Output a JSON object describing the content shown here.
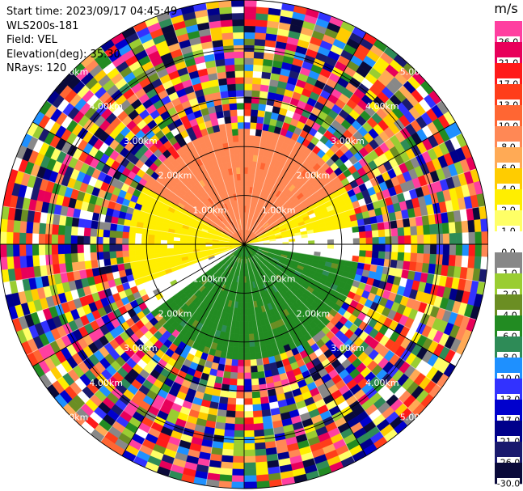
{
  "header": {
    "start_time": "Start time: 2023/09/17 04:45:49",
    "instrument": "WLS200s-181",
    "field": "Field: VEL",
    "elevation": "Elevation(deg): 35.30",
    "nrays": "NRays: 120"
  },
  "chart_data": {
    "type": "heatmap",
    "subtype": "ppi-polar",
    "field": "VEL",
    "unit": "m/s",
    "nrays": 120,
    "range_max_km": 5.0,
    "range_rings_km": [
      1,
      2,
      3,
      4,
      5
    ],
    "range_labels": [
      "1.00km",
      "2.00km",
      "3.00km",
      "4.00km",
      "5.00km"
    ],
    "colorbar": {
      "label": "m/s",
      "ticks": [
        "26.0",
        "21.0",
        "17.0",
        "13.0",
        "10.0",
        "8.0",
        "6.0",
        "4.0",
        "2.0",
        "1.0",
        "0.0",
        "-1.0",
        "-2.0",
        "-4.0",
        "-6.0",
        "-8.0",
        "-10.0",
        "-13.0",
        "-17.0",
        "-21.0",
        "-26.0",
        "-30.0"
      ],
      "colors": [
        "#ff3fa0",
        "#e8005a",
        "#ff1a1a",
        "#ff3d1a",
        "#ff6633",
        "#ff8855",
        "#ffaa55",
        "#ffcc00",
        "#ffee00",
        "#ffff66",
        "#ffffff",
        "#888888",
        "#9acd32",
        "#6b8e23",
        "#228b22",
        "#2e8b57",
        "#1e90ff",
        "#3232ff",
        "#0000cd",
        "#00008b",
        "#1a1a6e",
        "#0a0a3a"
      ]
    },
    "velocity_sectors_by_range": [
      {
        "range_km": [
          0,
          2.4
        ],
        "az_from": 300,
        "az_to": 60,
        "vel": 8.0
      },
      {
        "range_km": [
          0,
          2.4
        ],
        "az_from": 250,
        "az_to": 300,
        "vel": 2.0
      },
      {
        "range_km": [
          0,
          2.4
        ],
        "az_from": 60,
        "az_to": 80,
        "vel": 2.0
      },
      {
        "range_km": [
          0,
          2.4
        ],
        "az_from": 80,
        "az_to": 100,
        "vel": 0.0
      },
      {
        "range_km": [
          0,
          2.4
        ],
        "az_from": 235,
        "az_to": 250,
        "vel": 0.0
      },
      {
        "range_km": [
          0,
          2.4
        ],
        "az_from": 100,
        "az_to": 235,
        "vel": -6.0
      }
    ],
    "noise_beyond_km": 2.6
  }
}
